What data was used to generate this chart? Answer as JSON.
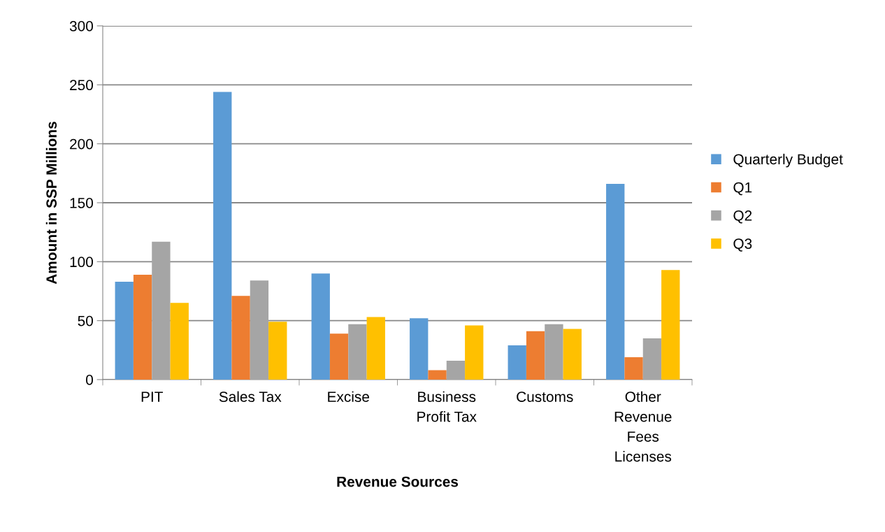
{
  "chart_data": {
    "type": "bar",
    "xlabel": "Revenue Sources",
    "ylabel": "Amount in SSP Millions",
    "categories": [
      "PIT",
      "Sales Tax",
      "Excise",
      "Business\nProfit Tax",
      "Customs",
      "Other\nRevenue\nFees\nLicenses"
    ],
    "series": [
      {
        "name": "Quarterly Budget",
        "color": "#5b9bd5",
        "values": [
          83,
          244,
          90,
          52,
          29,
          166
        ]
      },
      {
        "name": "Q1",
        "color": "#ed7d31",
        "values": [
          89,
          71,
          39,
          8,
          41,
          19
        ]
      },
      {
        "name": "Q2",
        "color": "#a5a5a5",
        "values": [
          117,
          84,
          47,
          16,
          47,
          35
        ]
      },
      {
        "name": "Q3",
        "color": "#ffc000",
        "values": [
          65,
          49,
          53,
          46,
          43,
          93
        ]
      }
    ],
    "ylim": [
      0,
      300
    ],
    "yticks": [
      0,
      50,
      100,
      150,
      200,
      250,
      300
    ],
    "grid": "y",
    "legend": "right"
  }
}
